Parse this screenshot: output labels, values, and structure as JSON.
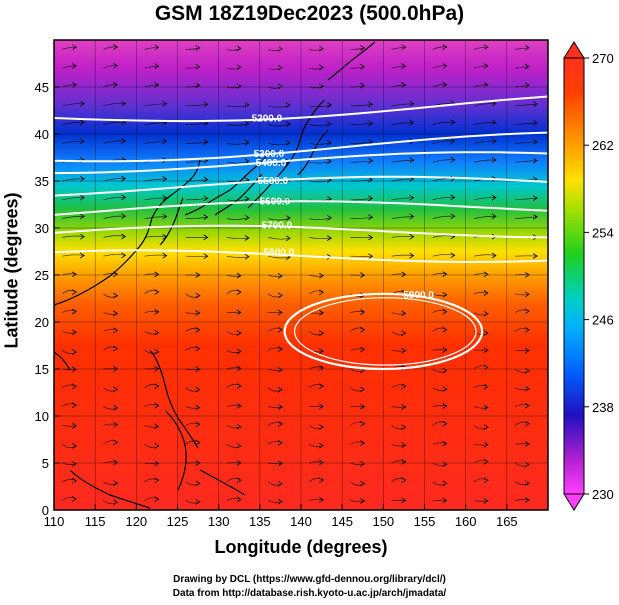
{
  "title": "GSM 18Z19Dec2023 (500.0hPa)",
  "xlabel": "Longitude (degrees)",
  "ylabel": "Latitude  (degrees)",
  "credits": {
    "line1": "Drawing by DCL (https://www.gfd-dennou.org/library/dcl/)",
    "line2": "Data from http://database.rish.kyoto-u.ac.jp/arch/jmadata/"
  },
  "map": {
    "lon_range": [
      110,
      170
    ],
    "lat_range": [
      0,
      50
    ],
    "x_ticks": [
      110,
      115,
      120,
      125,
      130,
      135,
      140,
      145,
      150,
      155,
      160,
      165
    ],
    "y_ticks": [
      0,
      5,
      10,
      15,
      20,
      25,
      30,
      35,
      40,
      45
    ],
    "field": "temperature",
    "colorbar": {
      "min": 230,
      "max": 270,
      "tick_labels": [
        "270",
        "262",
        "254",
        "246",
        "238",
        "230"
      ],
      "colors": [
        "#e0d0ff",
        "#d000d0",
        "#0000c0",
        "#0080ff",
        "#00d0d0",
        "#20c020",
        "#c0e000",
        "#ffff00",
        "#ff9000",
        "#ff2000",
        "#ff6060"
      ]
    },
    "contours": [
      {
        "label": "5200.0",
        "lat_at_140": 42.5
      },
      {
        "label": "5300.0",
        "lat_at_140": 38.5
      },
      {
        "label": "5400.0",
        "lat_at_140": 37.0
      },
      {
        "label": "5500.0",
        "lat_at_140": 34.5
      },
      {
        "label": "5600.0",
        "lat_at_140": 32.0
      },
      {
        "label": "5700.0",
        "lat_at_140": 29.5
      },
      {
        "label": "5800.0",
        "lat_at_140": 27.0
      },
      {
        "label": "5900.0",
        "lat_at_140": 19.0
      }
    ]
  }
}
